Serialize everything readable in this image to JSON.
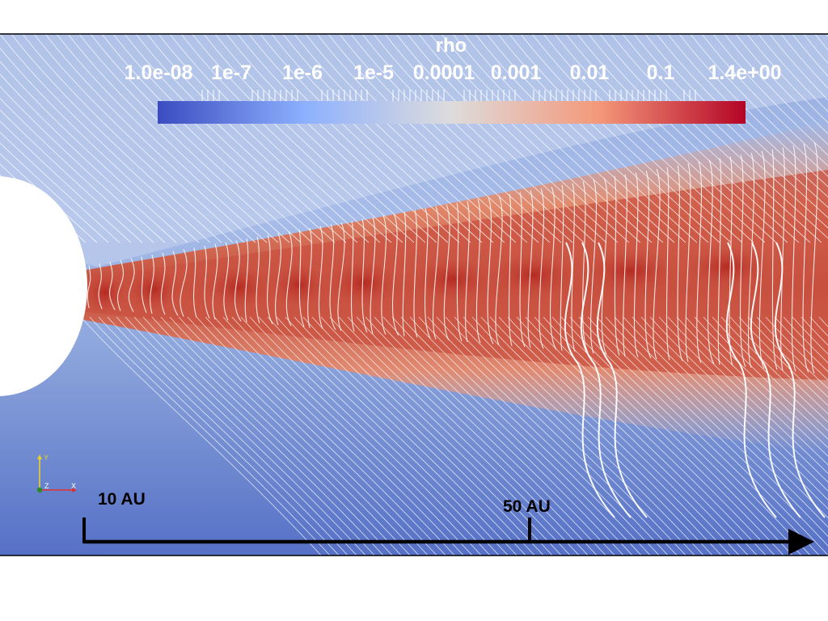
{
  "colorbar": {
    "title": "rho",
    "tick_labels": [
      "1.0e-08",
      "1e-7",
      "1e-6",
      "1e-5",
      "0.0001",
      "0.001",
      "0.01",
      "0.1",
      "1.4e+00"
    ],
    "colors": [
      "#3b4cc0",
      "#8db0fe",
      "#dddcdc",
      "#f4987a",
      "#b40426"
    ]
  },
  "scale_bar": {
    "label_start": "10 AU",
    "label_mid": "50 AU"
  },
  "axes_triad": {
    "y_label": "Y",
    "z_label": "Z",
    "x_label": "X",
    "y_color": "#e8d22a",
    "x_color": "#e03030",
    "z_color": "#2a8a2a"
  },
  "colors": {
    "background_low": "#5a78c8",
    "background_mid": "#a8bde6",
    "disk_high": "#c0392b",
    "disk_mid": "#e07a5f",
    "streamline": "#ffffff",
    "star": "#ffffff"
  }
}
